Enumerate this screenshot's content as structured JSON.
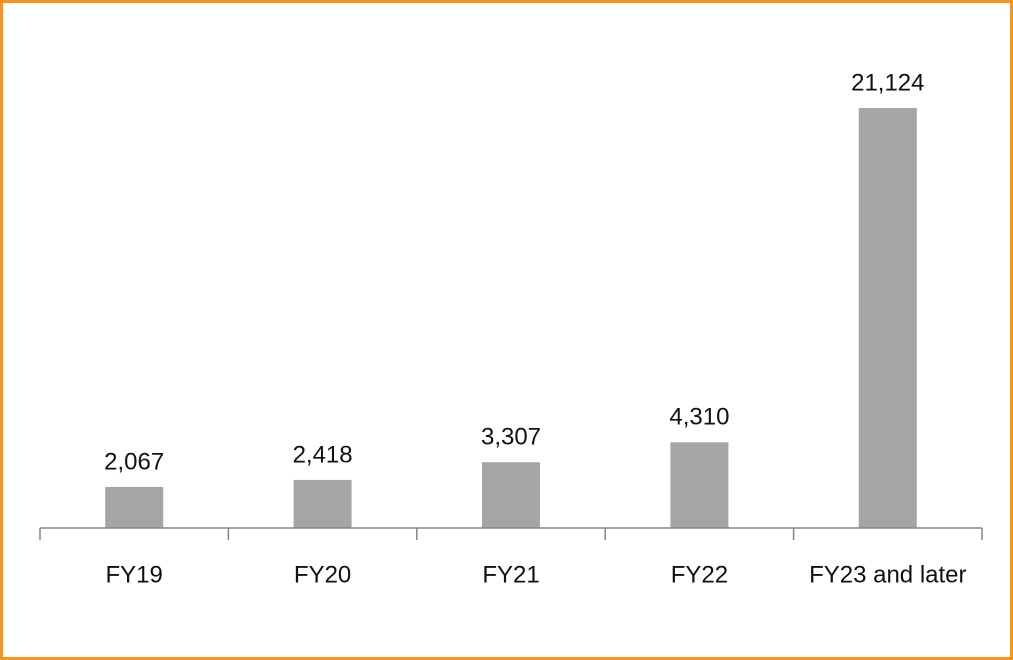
{
  "chart_data": {
    "type": "bar",
    "categories": [
      "FY19",
      "FY20",
      "FY21",
      "FY22",
      "FY23 and later"
    ],
    "values": [
      2067,
      2418,
      3307,
      4310,
      21124
    ],
    "value_labels": [
      "2,067",
      "2,418",
      "3,307",
      "4,310",
      "21,124"
    ],
    "color": "#a5a5a5",
    "ylim": [
      0,
      25000
    ]
  }
}
